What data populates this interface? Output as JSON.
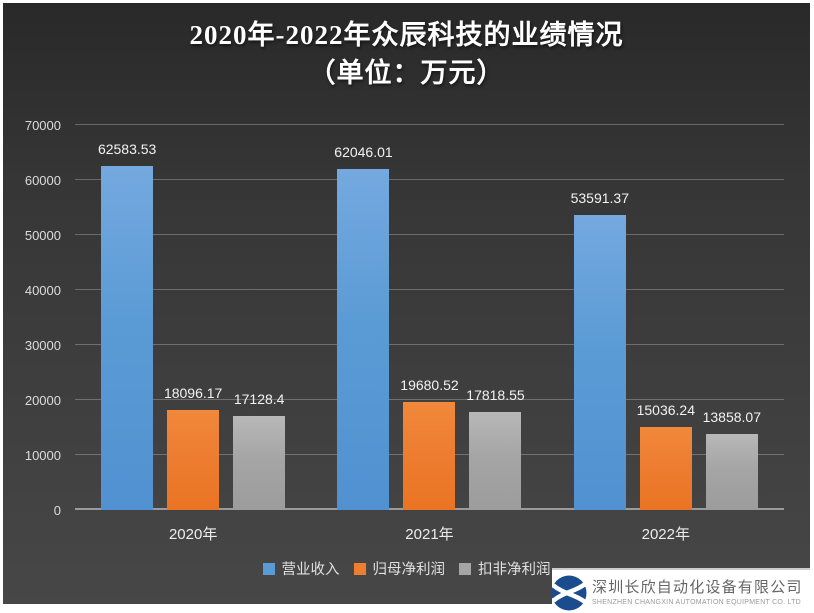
{
  "title": {
    "line1": "2020年-2022年众辰科技的业绩情况",
    "line2": "（单位：万元）"
  },
  "chart_data": {
    "type": "bar",
    "title": "2020年-2022年众辰科技的业绩情况（单位：万元）",
    "categories": [
      "2020年",
      "2021年",
      "2022年"
    ],
    "series": [
      {
        "name": "营业收入",
        "color": "#5B9BD5",
        "color_top": "#74A9DF",
        "color_bottom": "#5191D1",
        "values": [
          62583.53,
          62046.01,
          53591.37
        ],
        "labels": [
          "62583.53",
          "62046.01",
          "53591.37"
        ]
      },
      {
        "name": "归母净利润",
        "color": "#ED7D31",
        "color_top": "#F1883A",
        "color_bottom": "#EA7423",
        "values": [
          18096.17,
          19680.52,
          15036.24
        ],
        "labels": [
          "18096.17",
          "19680.52",
          "15036.24"
        ]
      },
      {
        "name": "扣非净利润",
        "color": "#A5A5A5",
        "color_top": "#B8B8B8",
        "color_bottom": "#9C9C9C",
        "values": [
          17128.4,
          17818.55,
          13858.07
        ],
        "labels": [
          "17128.4",
          "17818.55",
          "13858.07"
        ]
      }
    ],
    "xlabel": "",
    "ylabel": "",
    "ylim": [
      0,
      70000
    ],
    "ytick_step": 10000,
    "yticks": [
      "0",
      "10000",
      "20000",
      "30000",
      "40000",
      "50000",
      "60000",
      "70000"
    ],
    "grid": true,
    "legend_position": "bottom"
  },
  "footer": {
    "company_cn": "深圳长欣自动化设备有限公司",
    "company_en": "SHENZHEN CHANGXIN AUTOMATION EQUIPMENT CO. LTD",
    "logo_icon": "changxin-logo",
    "logo_accent": "#1B4D8E"
  }
}
